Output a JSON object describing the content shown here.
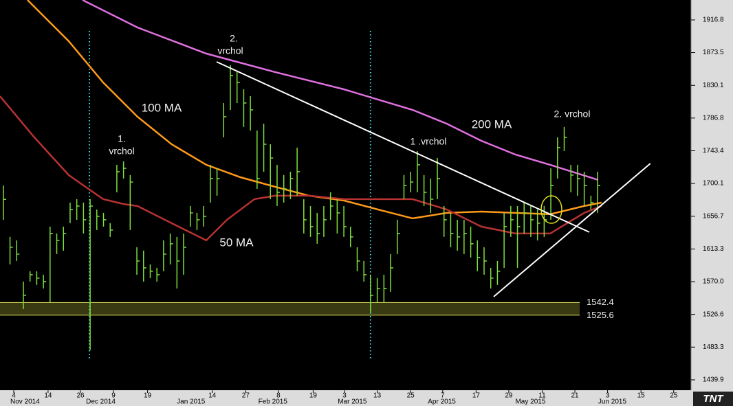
{
  "chart_data": {
    "type": "ohlc",
    "xlim": [
      -0.5,
      103
    ],
    "ylim": [
      1426.2,
      1943.2
    ],
    "yticks": [
      1916.8,
      1873.5,
      1830.1,
      1786.8,
      1743.4,
      1700.1,
      1656.7,
      1613.3,
      {
        "value": 1570,
        "label": "1570.0"
      },
      1526.6,
      1483.3,
      1439.9
    ],
    "xticks": [
      {
        "value": 1.56,
        "label": "4"
      },
      {
        "value": 6.7,
        "label": "14"
      },
      {
        "value": 11.55,
        "label": "26"
      },
      {
        "value": 16.5,
        "label": "9"
      },
      {
        "value": 21.6,
        "label": "19"
      },
      {
        "value": 31.3,
        "label": "14"
      },
      {
        "value": 36.3,
        "label": "27"
      },
      {
        "value": 41.2,
        "label": "8"
      },
      {
        "value": 46.4,
        "label": "19"
      },
      {
        "value": 51.1,
        "label": "3"
      },
      {
        "value": 56.0,
        "label": "13"
      },
      {
        "value": 61.0,
        "label": "25"
      },
      {
        "value": 65.8,
        "label": "7"
      },
      {
        "value": 70.8,
        "label": "17"
      },
      {
        "value": 75.7,
        "label": "29"
      },
      {
        "value": 80.7,
        "label": "11"
      },
      {
        "value": 85.6,
        "label": "21"
      },
      {
        "value": 90.5,
        "label": "3"
      },
      {
        "value": 95.5,
        "label": "15"
      },
      {
        "value": 100.4,
        "label": "25"
      }
    ],
    "month_ticks": [
      {
        "value": 1.56,
        "label": "Nov 2014"
      },
      {
        "value": 12.9,
        "label": "Dec 2014"
      },
      {
        "value": 26.5,
        "label": "Jan 2015"
      },
      {
        "value": 38.7,
        "label": "Feb 2015"
      },
      {
        "value": 50.6,
        "label": "Mar 2015"
      },
      {
        "value": 64.1,
        "label": "Apr 2015"
      },
      {
        "value": 77.2,
        "label": "May 2015"
      },
      {
        "value": 89.6,
        "label": "Jun 2015"
      }
    ],
    "x": [
      0,
      1,
      2,
      3,
      4,
      5,
      6,
      7,
      8,
      9,
      10,
      11,
      12,
      13,
      14,
      15,
      16,
      17,
      18,
      19,
      20,
      21,
      22,
      23,
      24,
      25,
      26,
      27,
      28,
      29,
      30,
      31,
      32,
      33,
      34,
      35,
      36,
      37,
      38,
      39,
      40,
      41,
      42,
      43,
      44,
      45,
      46,
      47,
      48,
      49,
      50,
      51,
      52,
      53,
      54,
      55,
      56,
      57,
      58,
      59,
      60,
      61,
      62,
      63,
      64,
      65,
      66,
      67,
      68,
      69,
      70,
      71,
      72,
      73,
      74,
      75,
      76,
      77,
      78,
      79,
      80,
      81,
      82,
      83,
      84,
      85,
      86,
      87,
      88,
      89
    ],
    "bars": {
      "color": "#7fe03c",
      "high": [
        1697.5,
        1629.3,
        1624.7,
        1570.1,
        1583.8,
        1583.8,
        1579.2,
        1642.9,
        1633.8,
        1642.9,
        1674.7,
        1679.3,
        1674.7,
        1679.3,
        1665.6,
        1661.1,
        1647.5,
        1724.8,
        1729.3,
        1711.2,
        1615.6,
        1611.1,
        1592.9,
        1588.3,
        1624.7,
        1633.8,
        1629.3,
        1633.8,
        1670.2,
        1661.1,
        1670.2,
        1724.8,
        1720.2,
        1806.7,
        1856.8,
        1847.7,
        1824.9,
        1815.8,
        1770.3,
        1779.4,
        1752.1,
        1724.8,
        1711.2,
        1715.7,
        1747.6,
        1679.3,
        1670.2,
        1661.1,
        1670.2,
        1688.4,
        1679.3,
        1670.2,
        1642.9,
        1615.6,
        1597.4,
        1579.2,
        1574.7,
        1579.2,
        1606.5,
        1652.0,
        1711.2,
        1715.7,
        1743.0,
        1711.2,
        1706.6,
        1733.9,
        1670.2,
        1661.1,
        1652.0,
        1652.0,
        1642.9,
        1624.7,
        1615.6,
        1588.3,
        1597.4,
        1661.1,
        1670.2,
        1670.2,
        1674.7,
        1670.2,
        1665.6,
        1670.2,
        1720.2,
        1761.2,
        1774.9,
        1724.8,
        1724.8,
        1715.7,
        1683.9,
        1715.7
      ],
      "low": [
        1652.0,
        1592.9,
        1597.4,
        1533.7,
        1570.1,
        1565.6,
        1561.0,
        1542.8,
        1606.5,
        1611.1,
        1647.5,
        1652.0,
        1633.8,
        1479.1,
        1638.4,
        1643.0,
        1629.3,
        1688.4,
        1706.6,
        1638.4,
        1579.2,
        1570.1,
        1574.7,
        1570.1,
        1583.8,
        1592.9,
        1561.0,
        1579.2,
        1642.9,
        1638.4,
        1642.9,
        1674.8,
        1683.9,
        1761.2,
        1797.6,
        1806.7,
        1774.9,
        1770.3,
        1693.0,
        1715.7,
        1679.3,
        1670.2,
        1674.8,
        1679.3,
        1683.9,
        1633.8,
        1629.3,
        1620.2,
        1629.3,
        1652.0,
        1633.8,
        1629.3,
        1615.6,
        1583.8,
        1570.1,
        1529.2,
        1542.8,
        1542.8,
        1556.5,
        1606.5,
        1679.3,
        1688.4,
        1688.4,
        1670.2,
        1661.1,
        1679.3,
        1629.3,
        1615.6,
        1611.1,
        1606.5,
        1601.9,
        1583.8,
        1579.2,
        1561.0,
        1565.6,
        1588.3,
        1629.3,
        1588.3,
        1633.8,
        1629.3,
        1624.7,
        1629.3,
        1652.0,
        1706.6,
        1743.0,
        1688.4,
        1683.9,
        1670.2,
        1665.6,
        1661.1
      ],
      "close": [
        1679.0,
        1615.6,
        1606.5,
        1551.9,
        1579.2,
        1574.7,
        1570.1,
        1633.8,
        1624.7,
        1633.8,
        1665.7,
        1670.2,
        1652.0,
        1670.2,
        1656.6,
        1652.0,
        1638.4,
        1715.7,
        1720.2,
        1702.0,
        1597.4,
        1588.3,
        1583.8,
        1579.2,
        1606.5,
        1620.2,
        1597.4,
        1615.6,
        1661.1,
        1652.0,
        1656.6,
        1706.6,
        1706.6,
        1788.5,
        1843.1,
        1834.0,
        1806.7,
        1797.6,
        1706.6,
        1752.1,
        1733.9,
        1688.4,
        1693.0,
        1706.6,
        1715.7,
        1652.0,
        1642.9,
        1633.8,
        1652.0,
        1670.2,
        1661.1,
        1642.9,
        1629.3,
        1597.4,
        1579.2,
        1551.9,
        1561.0,
        1561.0,
        1588.3,
        1633.8,
        1697.5,
        1702.0,
        1724.8,
        1688.4,
        1679.3,
        1706.6,
        1652.0,
        1633.8,
        1629.3,
        1633.8,
        1620.2,
        1602.0,
        1597.4,
        1574.7,
        1583.8,
        1642.9,
        1652.0,
        1642.9,
        1661.1,
        1652.0,
        1647.5,
        1652.0,
        1697.5,
        1747.6,
        1761.2,
        1711.2,
        1706.6,
        1697.5,
        1674.7,
        1697.5
      ]
    },
    "lines": [
      {
        "name": "200 MA",
        "color": "#e070e0",
        "x": [
          11.86,
          20.1,
          30.4,
          40.69,
          51.0,
          61.3,
          66.4,
          71.6,
          76.7,
          81.9,
          89.1
        ],
        "values": [
          1943.2,
          1906.8,
          1872.2,
          1847.7,
          1824.9,
          1797.6,
          1779.4,
          1756.6,
          1738.4,
          1724.8,
          1704.8
        ]
      },
      {
        "name": "100 MA",
        "color": "#ff9a1a",
        "x": [
          3.62,
          9.8,
          14.95,
          20.1,
          25.2,
          30.4,
          35.5,
          40.7,
          45.8,
          51.0,
          56.1,
          61.3,
          66.4,
          71.6,
          76.7,
          81.9,
          87.0,
          89.6
        ],
        "values": [
          1943.2,
          1888.6,
          1834.0,
          1788.5,
          1752.1,
          1724.8,
          1708.4,
          1695.7,
          1683.9,
          1677.5,
          1665.7,
          1653.8,
          1661.1,
          1662.9,
          1661.1,
          1659.3,
          1670.2,
          1674.8
        ]
      },
      {
        "name": "50 MA",
        "color": "#b83232",
        "x": [
          -0.5,
          4.65,
          9.8,
          14.95,
          18.0,
          20.1,
          25.2,
          30.4,
          33.5,
          37.6,
          40.7,
          45.8,
          51.0,
          56.1,
          61.3,
          66.4,
          71.6,
          76.7,
          81.9,
          87.0,
          89.6
        ],
        "values": [
          1815.8,
          1761.2,
          1711.2,
          1679.3,
          1672.9,
          1670.2,
          1647.5,
          1624.7,
          1652.0,
          1679.3,
          1683.9,
          1683.9,
          1679.3,
          1679.3,
          1679.3,
          1665.7,
          1642.9,
          1633.8,
          1633.8,
          1661.1,
          1670.2
        ]
      }
    ],
    "levels": [
      1542.4,
      1525.6
    ],
    "trendlines": [
      {
        "x": [
          31.94,
          87.76
        ],
        "values": [
          1861.3,
          1635.6
        ]
      },
      {
        "x": [
          73.44,
          96.9
        ],
        "values": [
          1550.1,
          1726.6
        ]
      }
    ],
    "vlines": [
      12.89,
      55.0
    ],
    "annotations": [
      {
        "lines": [
          "2.",
          "vrchol"
        ]
      },
      {
        "lines": [
          "1.",
          "vrchol"
        ]
      },
      {
        "lines": [
          "1 .vrchol"
        ]
      },
      {
        "lines": [
          "2. vrchol"
        ]
      }
    ],
    "logo": "TNT"
  }
}
